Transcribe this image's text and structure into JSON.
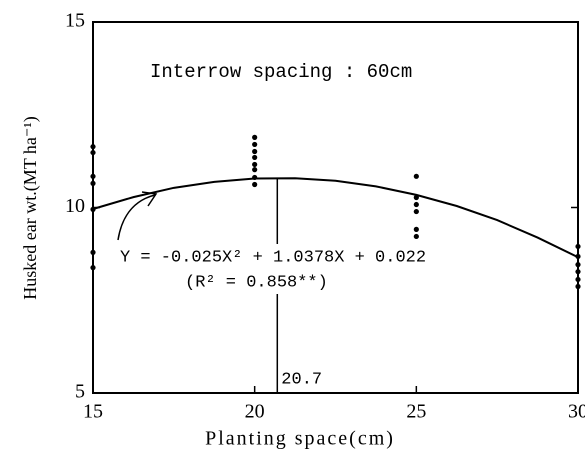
{
  "chart_data": {
    "type": "scatter",
    "xlabel": "Planting space(cm)",
    "ylabel": "Husked ear wt.(MT ha⁻¹)",
    "annotations": [
      "Interrow spacing : 60cm",
      "Y = -0.025X² + 1.0378X + 0.022",
      "(R² = 0.858**)"
    ],
    "optimum": 20.7,
    "xlim": [
      15,
      30
    ],
    "xticks": [
      15,
      20,
      25,
      30
    ],
    "ylim": [
      5,
      15
    ],
    "yticks": [
      5,
      10,
      15
    ],
    "points": {
      "color": "#000",
      "x": [
        15,
        15,
        15,
        15,
        15,
        15,
        15,
        20,
        20,
        20,
        20,
        20,
        20,
        20,
        20,
        25,
        25,
        25,
        25,
        25,
        25,
        30,
        30,
        30,
        30,
        30,
        30
      ],
      "values": [
        11.64,
        11.48,
        10.84,
        10.65,
        9.95,
        8.79,
        8.38,
        11.89,
        11.7,
        11.51,
        11.35,
        11.16,
        11.02,
        10.81,
        10.62,
        10.84,
        10.27,
        10.08,
        9.89,
        9.41,
        9.22,
        8.95,
        8.68,
        8.46,
        8.27,
        8.06,
        7.87
      ]
    },
    "curve": {
      "color": "#000",
      "x": [
        15,
        16.25,
        17.5,
        18.75,
        20,
        21.25,
        22.5,
        23.75,
        25,
        26.25,
        27.5,
        28.75,
        30
      ],
      "values": [
        9.96,
        10.28,
        10.53,
        10.69,
        10.78,
        10.79,
        10.72,
        10.57,
        10.34,
        10.04,
        9.66,
        9.19,
        8.66
      ]
    }
  }
}
